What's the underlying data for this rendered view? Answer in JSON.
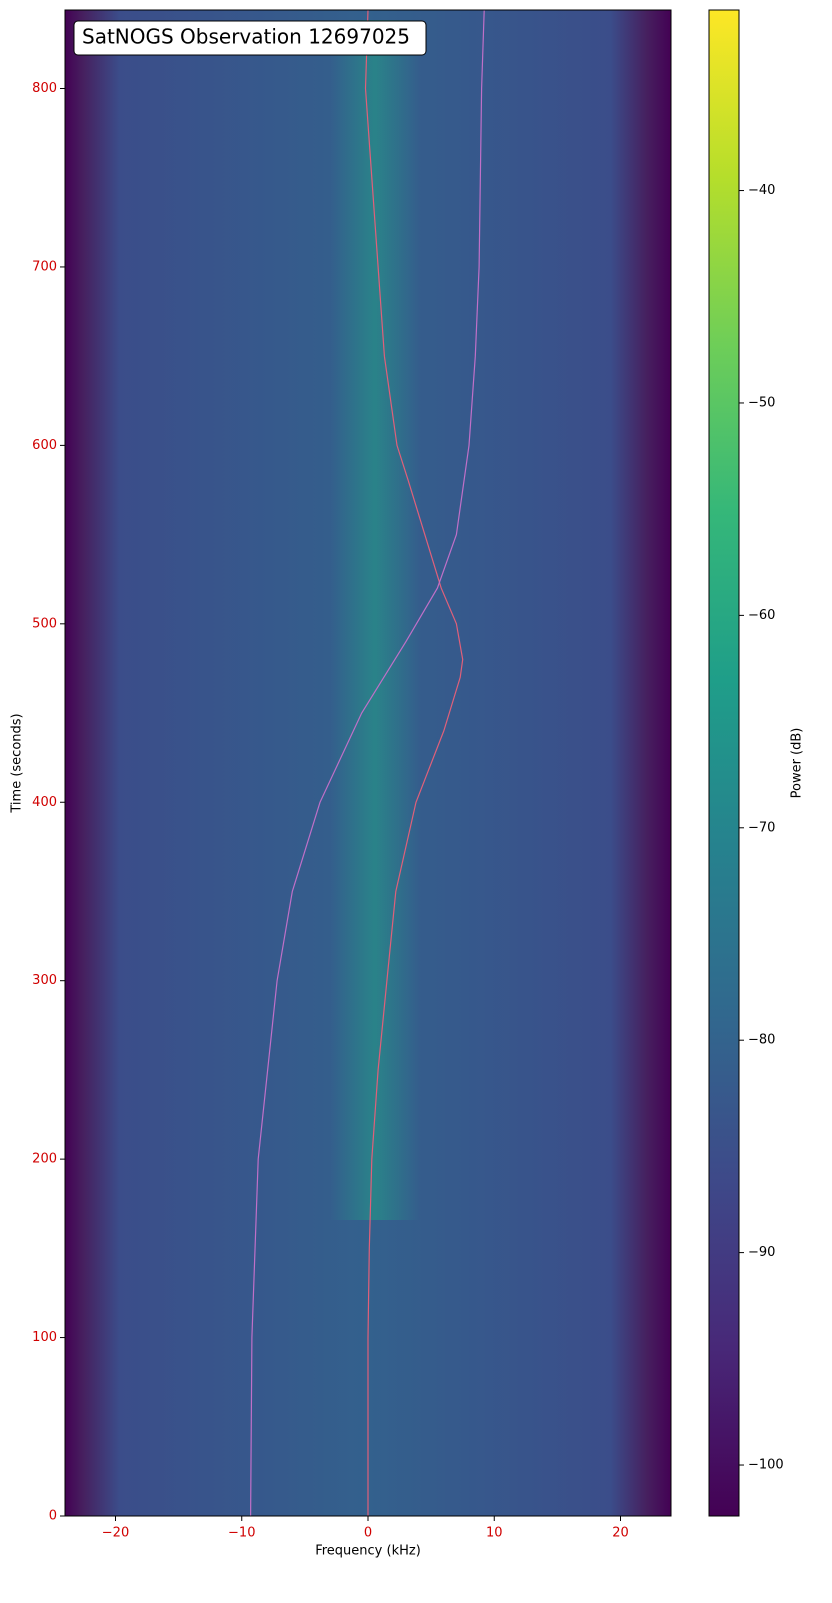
{
  "chart_data": {
    "type": "spectrogram",
    "title": "SatNOGS Observation 12697025",
    "x_label": "Frequency (kHz)",
    "y_label": "Time (seconds)",
    "xlim": [
      -24,
      24
    ],
    "ylim": [
      0,
      844
    ],
    "xticks": [
      {
        "value": -20,
        "label": "−20"
      },
      {
        "value": -10,
        "label": "−10"
      },
      0,
      10,
      20
    ],
    "yticks": [
      0,
      100,
      200,
      300,
      400,
      500,
      600,
      700,
      800
    ],
    "colormap": "viridis",
    "colorbar": {
      "label": "Power (dB)",
      "clim": [
        -102.4,
        -31.5
      ],
      "ticks": [
        {
          "value": -40,
          "label": "−40"
        },
        {
          "value": -50,
          "label": "−50"
        },
        {
          "value": -60,
          "label": "−60"
        },
        {
          "value": -70,
          "label": "−70"
        },
        {
          "value": -80,
          "label": "−80"
        },
        {
          "value": -90,
          "label": "−90"
        },
        {
          "value": -100,
          "label": "−100"
        }
      ]
    },
    "series": [
      {
        "color": "#e0607a",
        "x": [
          0,
          0,
          0.1,
          0.3,
          0.8,
          1.5,
          2.2,
          3.8,
          6,
          7.3,
          7.5,
          7,
          5.8,
          4.5,
          3.2,
          2.3,
          1.3,
          0.8,
          0.3,
          -0.2,
          0
        ],
        "values": [
          0,
          100,
          150,
          200,
          250,
          300,
          350,
          400,
          440,
          470,
          480,
          500,
          520,
          550,
          580,
          600,
          650,
          700,
          750,
          800,
          844
        ]
      },
      {
        "color": "#c070c8",
        "x": [
          -9.3,
          -9.2,
          -8.7,
          -7.2,
          -6,
          -3.8,
          -0.5,
          3,
          5.5,
          7,
          8,
          8.5,
          8.8,
          9,
          9.2
        ],
        "values": [
          0,
          100,
          200,
          300,
          350,
          400,
          450,
          490,
          520,
          550,
          600,
          650,
          700,
          800,
          844
        ]
      }
    ]
  }
}
